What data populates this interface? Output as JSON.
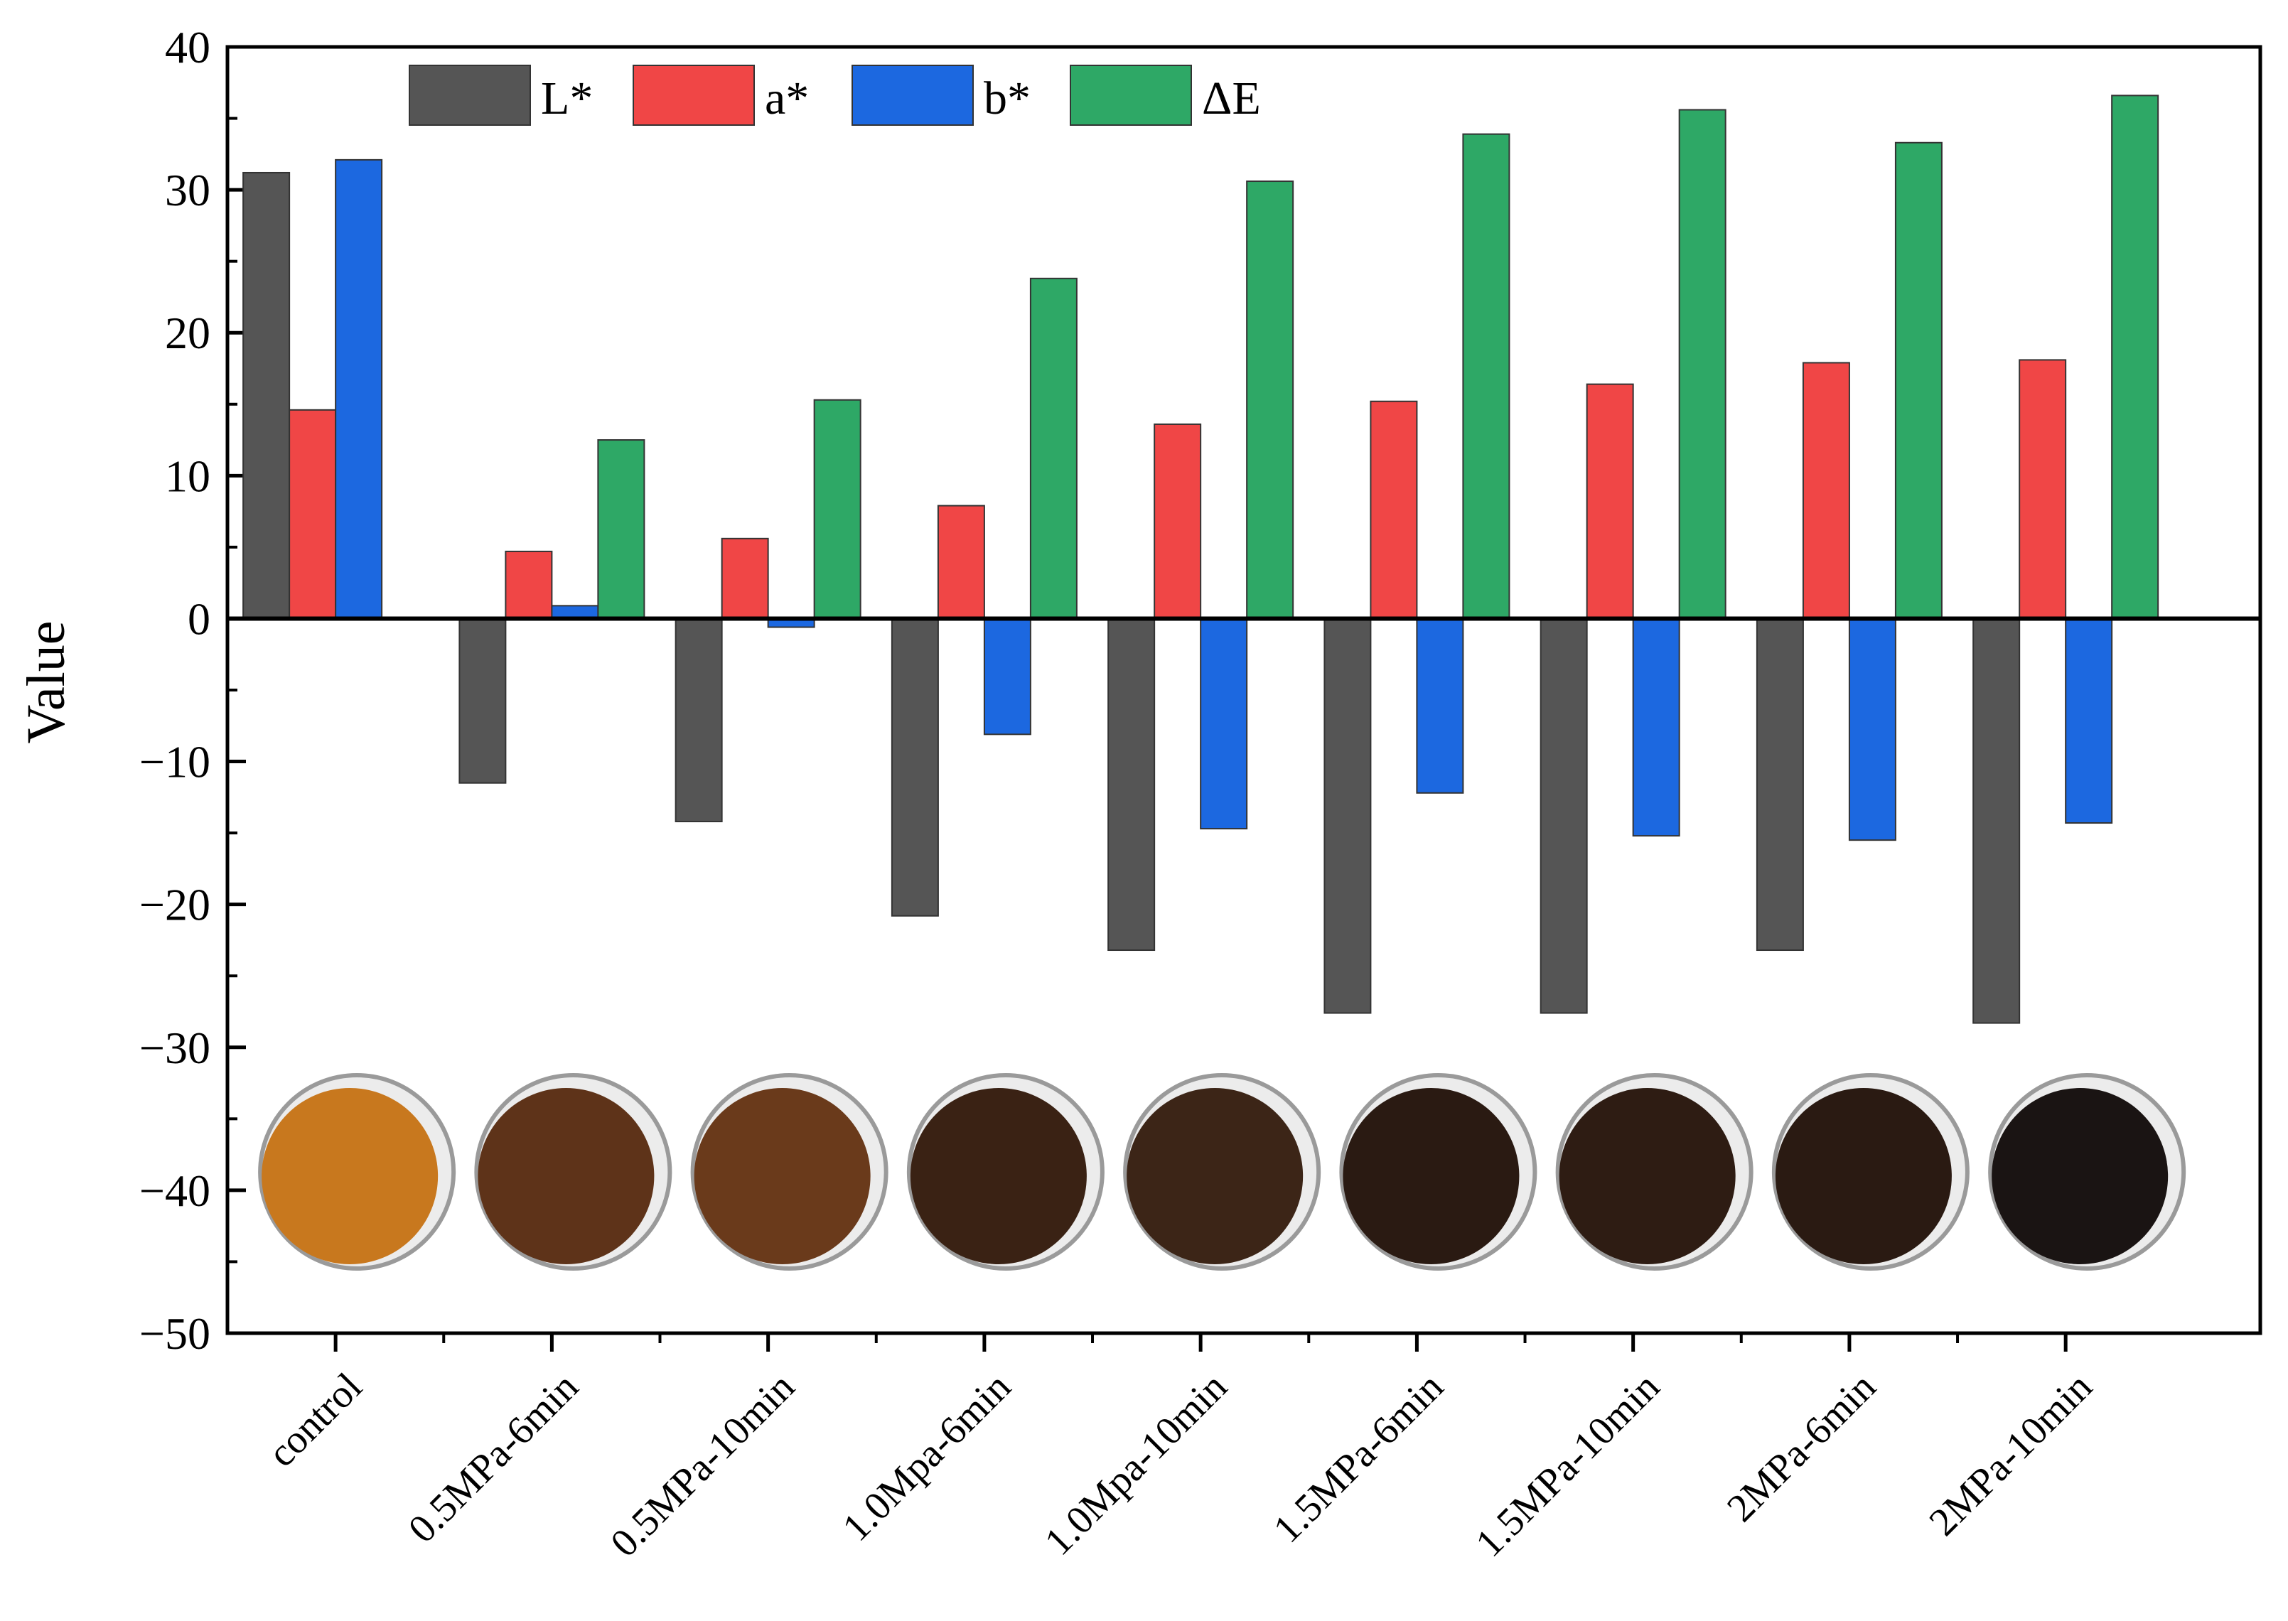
{
  "chart_data": {
    "type": "bar",
    "title": "",
    "xlabel": "",
    "ylabel": "Value",
    "ylim": [
      -50,
      40
    ],
    "yticks": [
      40,
      30,
      20,
      10,
      0,
      -10,
      -20,
      -30,
      -40,
      -50
    ],
    "ytick_labels": [
      "40",
      "30",
      "20",
      "10",
      "0",
      "−10",
      "−20",
      "−30",
      "−40",
      "−50"
    ],
    "categories": [
      "control",
      "0.5MPa-6min",
      "0.5MPa-10min",
      "1.0Mpa-6min",
      "1.0Mpa-10min",
      "1.5MPa-6min",
      "1.5MPa-10min",
      "2MPa-6min",
      "2MPa-10min"
    ],
    "series": [
      {
        "name": "L*",
        "color": "#555555",
        "values": [
          31.2,
          -11.5,
          -14.2,
          -20.8,
          -23.2,
          -27.6,
          -27.6,
          -23.2,
          -28.3
        ]
      },
      {
        "name": "a*",
        "color": "#f04646",
        "values": [
          14.6,
          4.7,
          5.6,
          7.9,
          13.6,
          15.2,
          16.4,
          17.9,
          18.1
        ]
      },
      {
        "name": "b*",
        "color": "#1c68e0",
        "values": [
          32.1,
          0.9,
          -0.6,
          -8.1,
          -14.7,
          -12.2,
          -15.2,
          -15.5,
          -14.3
        ]
      },
      {
        "name": "ΔE",
        "color": "#2ea866",
        "values": [
          0,
          12.5,
          15.3,
          23.8,
          30.6,
          33.9,
          35.6,
          33.3,
          36.6
        ]
      }
    ],
    "legend": "top-left",
    "grid": false,
    "sample_image_colors": [
      "#c8781e",
      "#5e3319",
      "#6a3a1b",
      "#3a2214",
      "#3c2517",
      "#2a1a12",
      "#2e1c13",
      "#2a1a12",
      "#1a1413"
    ]
  }
}
